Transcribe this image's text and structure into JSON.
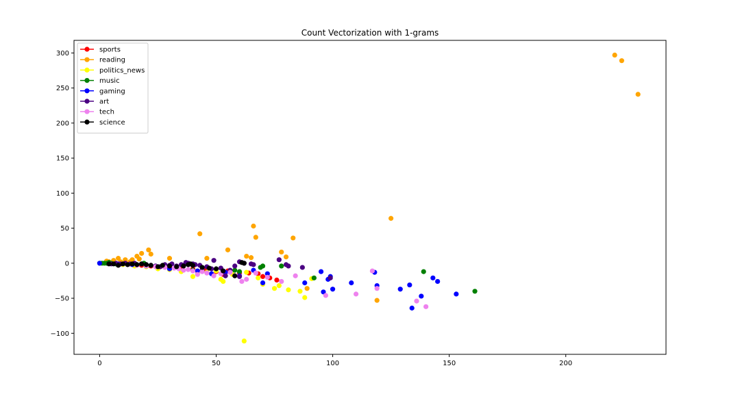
{
  "chart_data": {
    "type": "scatter",
    "title": "Count Vectorization with 1-grams",
    "xlabel": "",
    "ylabel": "",
    "xlim": [
      -11,
      243
    ],
    "ylim": [
      -130,
      318
    ],
    "xticks": [
      0,
      50,
      100,
      150,
      200
    ],
    "yticks": [
      -100,
      -50,
      0,
      50,
      100,
      150,
      200,
      250,
      300
    ],
    "xtick_labels": [
      "0",
      "50",
      "100",
      "150",
      "200"
    ],
    "ytick_labels": [
      "−100",
      "−50",
      "0",
      "50",
      "100",
      "150",
      "200",
      "250",
      "300"
    ],
    "grid": false,
    "legend_position": "top-left",
    "series": [
      {
        "name": "sports",
        "color": "#ff0000",
        "points": [
          [
            3,
            1
          ],
          [
            6,
            0
          ],
          [
            9,
            -1
          ],
          [
            12,
            -1
          ],
          [
            15,
            -2
          ],
          [
            18,
            -3
          ],
          [
            22,
            -4
          ],
          [
            26,
            -5
          ],
          [
            30,
            -6
          ],
          [
            35,
            -7
          ],
          [
            40,
            -8
          ],
          [
            45,
            -9
          ],
          [
            50,
            -12
          ],
          [
            53,
            -16
          ],
          [
            55,
            -11
          ],
          [
            60,
            -14
          ],
          [
            64,
            -14
          ],
          [
            68,
            -15
          ],
          [
            70,
            -19
          ],
          [
            73,
            -21
          ],
          [
            76,
            -24
          ]
        ]
      },
      {
        "name": "reading",
        "color": "#ffa500",
        "points": [
          [
            221,
            297
          ],
          [
            224,
            289
          ],
          [
            231,
            241
          ],
          [
            125,
            64
          ],
          [
            66,
            53
          ],
          [
            67,
            37
          ],
          [
            83,
            36
          ],
          [
            43,
            42
          ],
          [
            55,
            19
          ],
          [
            78,
            16
          ],
          [
            80,
            9
          ],
          [
            63,
            10
          ],
          [
            65,
            8
          ],
          [
            46,
            7
          ],
          [
            30,
            7
          ],
          [
            21,
            19
          ],
          [
            22,
            13
          ],
          [
            18,
            14
          ],
          [
            16,
            10
          ],
          [
            17,
            6
          ],
          [
            14,
            5
          ],
          [
            11,
            5
          ],
          [
            8,
            7
          ],
          [
            6,
            4
          ],
          [
            4,
            2
          ],
          [
            3,
            3
          ],
          [
            119,
            -53
          ],
          [
            89,
            -36
          ],
          [
            9,
            2
          ],
          [
            13,
            2
          ]
        ]
      },
      {
        "name": "politics_news",
        "color": "#ffff00",
        "points": [
          [
            62,
            -111
          ],
          [
            88,
            -49
          ],
          [
            81,
            -38
          ],
          [
            75,
            -36
          ],
          [
            77,
            -32
          ],
          [
            70,
            -30
          ],
          [
            53,
            -26
          ],
          [
            52,
            -23
          ],
          [
            63,
            -13
          ],
          [
            40,
            -19
          ],
          [
            42,
            -15
          ],
          [
            46,
            -13
          ],
          [
            50,
            -11
          ],
          [
            35,
            -12
          ],
          [
            30,
            -9
          ],
          [
            25,
            -8
          ],
          [
            20,
            -5
          ],
          [
            15,
            -4
          ],
          [
            10,
            -2
          ],
          [
            5,
            0
          ],
          [
            57,
            -16
          ],
          [
            68,
            -21
          ],
          [
            86,
            -40
          ],
          [
            91,
            -22
          ]
        ]
      },
      {
        "name": "music",
        "color": "#008000",
        "points": [
          [
            0,
            0
          ],
          [
            1,
            0
          ],
          [
            2,
            0
          ],
          [
            3,
            0
          ],
          [
            139,
            -12
          ],
          [
            161,
            -40
          ],
          [
            92,
            -21
          ],
          [
            78,
            -4
          ],
          [
            70,
            -4
          ],
          [
            69,
            -6
          ],
          [
            58,
            -10
          ],
          [
            40,
            -10
          ],
          [
            20,
            -3
          ],
          [
            19,
            0
          ],
          [
            4,
            1
          ],
          [
            5,
            0
          ],
          [
            7,
            -1
          ],
          [
            60,
            -12
          ]
        ]
      },
      {
        "name": "gaming",
        "color": "#0000ff",
        "points": [
          [
            0,
            0
          ],
          [
            153,
            -44
          ],
          [
            145,
            -26
          ],
          [
            143,
            -21
          ],
          [
            138,
            -47
          ],
          [
            134,
            -64
          ],
          [
            133,
            -31
          ],
          [
            129,
            -37
          ],
          [
            118,
            -13
          ],
          [
            119,
            -32
          ],
          [
            108,
            -28
          ],
          [
            100,
            -37
          ],
          [
            99,
            -19
          ],
          [
            98,
            -23
          ],
          [
            96,
            -41
          ],
          [
            95,
            -12
          ],
          [
            88,
            -28
          ],
          [
            72,
            -15
          ],
          [
            70,
            -28
          ],
          [
            66,
            -10
          ],
          [
            54,
            -13
          ],
          [
            48,
            -15
          ],
          [
            42,
            -11
          ],
          [
            30,
            -8
          ],
          [
            25,
            -5
          ],
          [
            20,
            -4
          ],
          [
            14,
            -2
          ],
          [
            8,
            -1
          ],
          [
            60,
            -18
          ]
        ]
      },
      {
        "name": "art",
        "color": "#4b0082",
        "points": [
          [
            87,
            -6
          ],
          [
            81,
            -4
          ],
          [
            80,
            -2
          ],
          [
            77,
            5
          ],
          [
            66,
            -2
          ],
          [
            65,
            -1
          ],
          [
            62,
            0
          ],
          [
            60,
            2
          ],
          [
            58,
            -4
          ],
          [
            56,
            -10
          ],
          [
            52,
            -7
          ],
          [
            49,
            4
          ],
          [
            46,
            -5
          ],
          [
            43,
            -3
          ],
          [
            41,
            -2
          ],
          [
            40,
            -1
          ],
          [
            38,
            0
          ],
          [
            37,
            1
          ],
          [
            36,
            -3
          ],
          [
            35,
            -2
          ],
          [
            33,
            -4
          ],
          [
            31,
            -1
          ],
          [
            30,
            -3
          ],
          [
            28,
            -2
          ],
          [
            26,
            -5
          ],
          [
            24,
            -4
          ],
          [
            22,
            -3
          ],
          [
            20,
            -2
          ],
          [
            18,
            -1
          ],
          [
            16,
            -2
          ],
          [
            15,
            0
          ],
          [
            13,
            -1
          ],
          [
            11,
            0
          ],
          [
            9,
            -1
          ],
          [
            7,
            0
          ],
          [
            5,
            -1
          ],
          [
            99,
            -21
          ],
          [
            44,
            -10
          ],
          [
            48,
            -8
          ],
          [
            54,
            -18
          ],
          [
            60,
            -19
          ]
        ]
      },
      {
        "name": "tech",
        "color": "#ee82ee",
        "points": [
          [
            140,
            -62
          ],
          [
            136,
            -54
          ],
          [
            119,
            -36
          ],
          [
            117,
            -11
          ],
          [
            110,
            -44
          ],
          [
            97,
            -46
          ],
          [
            84,
            -18
          ],
          [
            78,
            -26
          ],
          [
            72,
            -20
          ],
          [
            67,
            -14
          ],
          [
            63,
            -23
          ],
          [
            61,
            -26
          ],
          [
            58,
            -18
          ],
          [
            56,
            -13
          ],
          [
            52,
            -15
          ],
          [
            49,
            -18
          ],
          [
            46,
            -14
          ],
          [
            44,
            -12
          ],
          [
            42,
            -16
          ],
          [
            40,
            -11
          ],
          [
            38,
            -9
          ],
          [
            36,
            -10
          ],
          [
            34,
            -8
          ],
          [
            32,
            -7
          ],
          [
            28,
            -6
          ],
          [
            24,
            -5
          ],
          [
            20,
            -4
          ],
          [
            16,
            -3
          ],
          [
            12,
            -2
          ]
        ]
      },
      {
        "name": "science",
        "color": "#000000",
        "points": [
          [
            61,
            1
          ],
          [
            62,
            0
          ],
          [
            58,
            -18
          ],
          [
            53,
            -11
          ],
          [
            50,
            -8
          ],
          [
            47,
            -7
          ],
          [
            44,
            -6
          ],
          [
            40,
            -3
          ],
          [
            39,
            -1
          ],
          [
            38,
            -2
          ],
          [
            36,
            -4
          ],
          [
            33,
            -5
          ],
          [
            30,
            -4
          ],
          [
            27,
            -3
          ],
          [
            25,
            -5
          ],
          [
            22,
            -3
          ],
          [
            20,
            -2
          ],
          [
            18,
            -1
          ],
          [
            16,
            -2
          ],
          [
            14,
            -1
          ],
          [
            12,
            -2
          ],
          [
            10,
            -1
          ],
          [
            8,
            -3
          ],
          [
            6,
            -1
          ],
          [
            4,
            -1
          ]
        ]
      }
    ]
  }
}
